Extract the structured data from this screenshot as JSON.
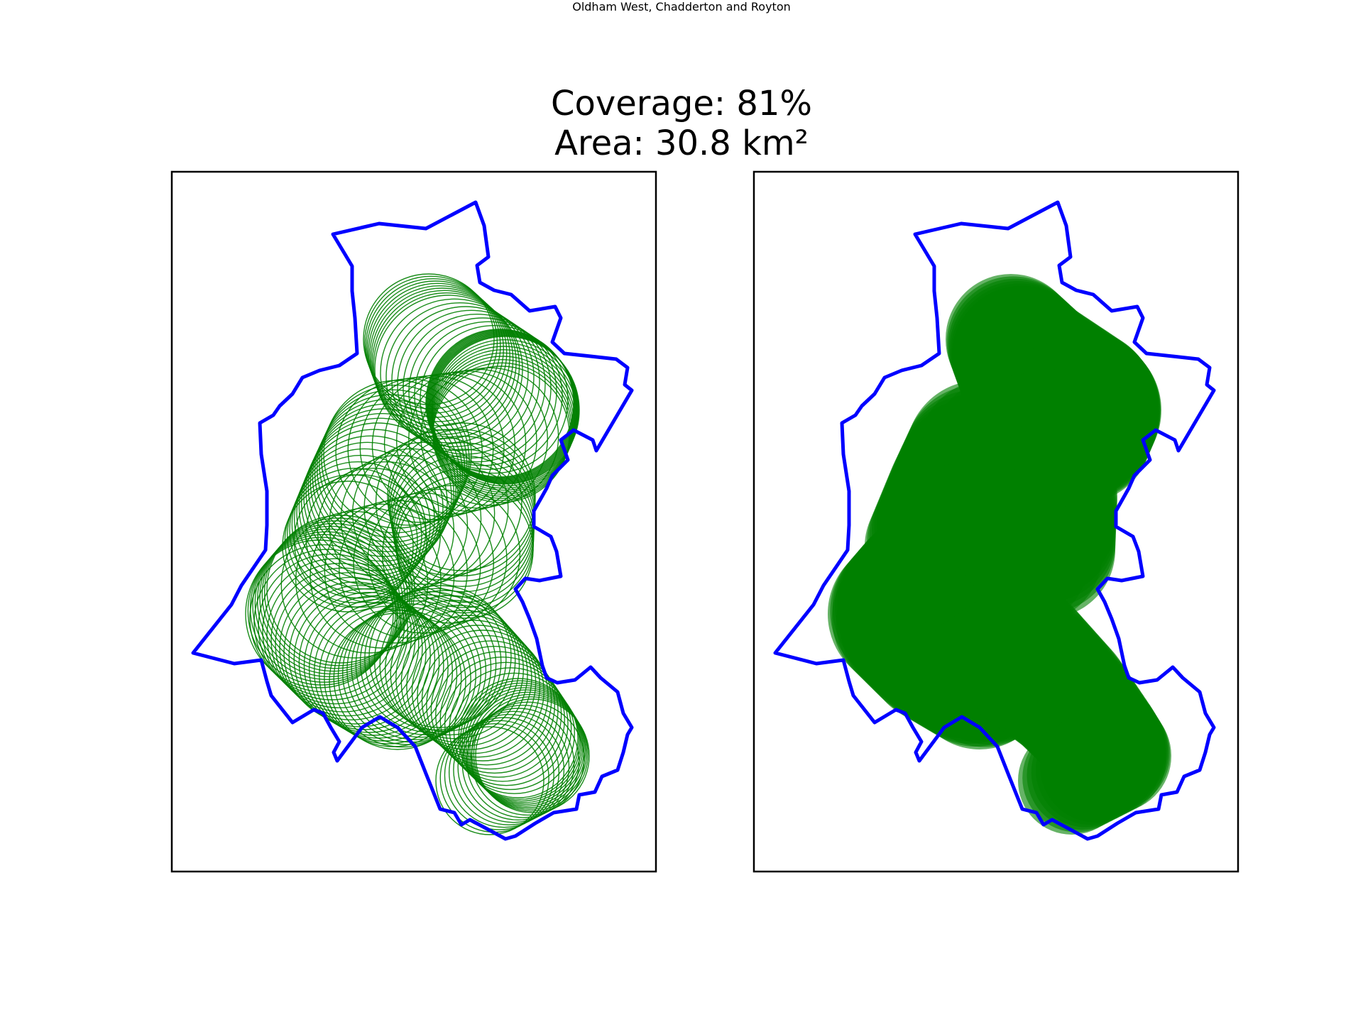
{
  "title": "Oldham West, Chadderton and Royton",
  "coverage_label": "Coverage: 81%",
  "area_label": "Area: 30.8 km²",
  "colors": {
    "boundary": "#0000ff",
    "coverage": "#008000",
    "frame": "#000000"
  },
  "panels": [
    {
      "name": "outline-view",
      "style": "circle-outlines"
    },
    {
      "name": "filled-view",
      "style": "filled-circles"
    }
  ]
}
